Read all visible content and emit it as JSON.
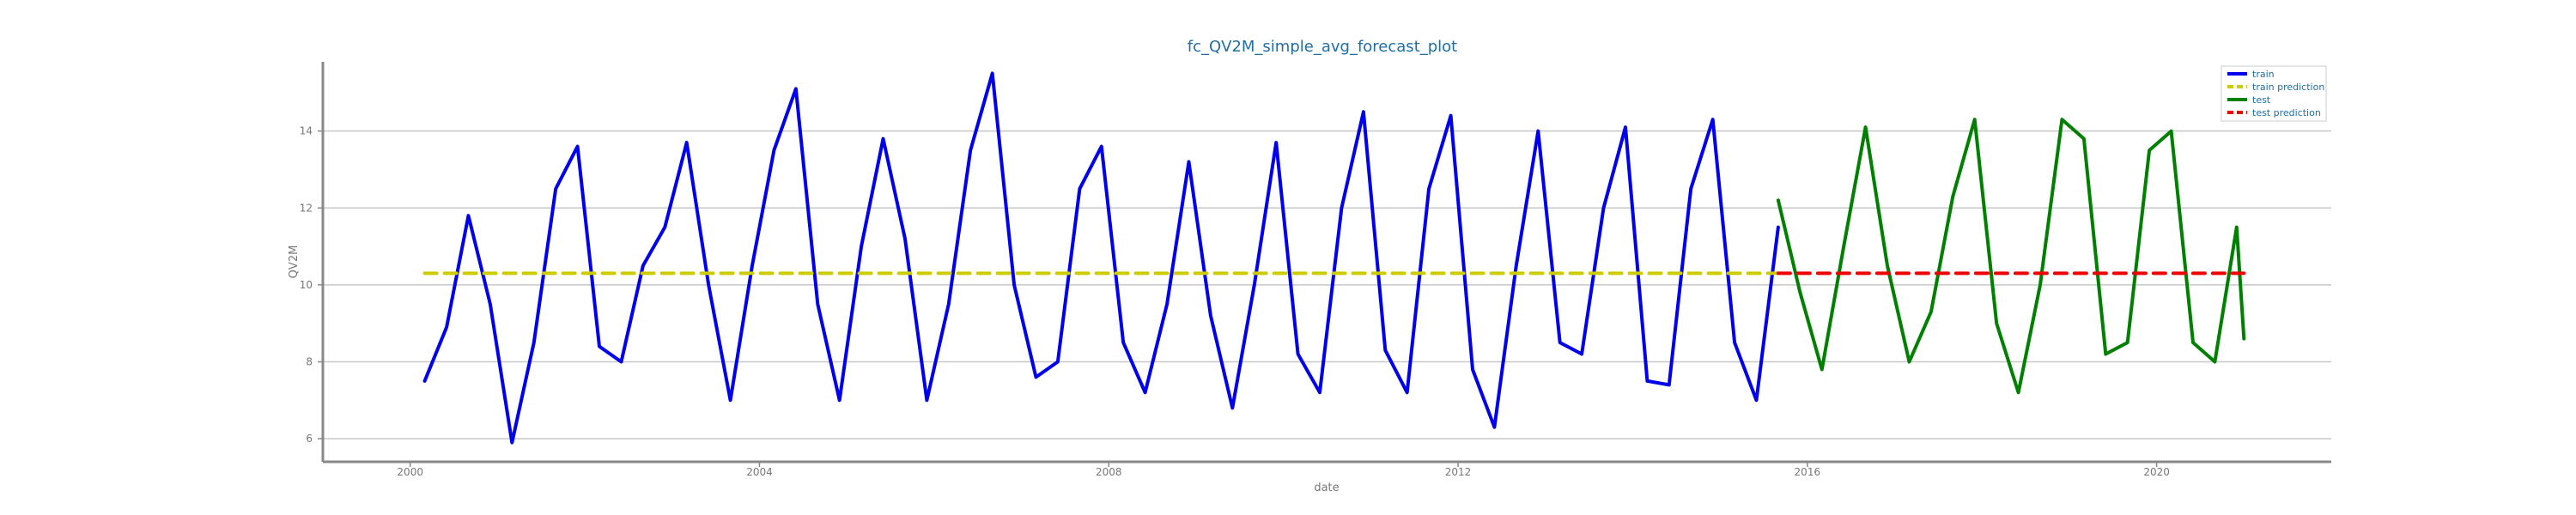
{
  "chart_data": {
    "type": "line",
    "title": "fc_QV2M_simple_avg_forecast_plot",
    "xlabel": "date",
    "ylabel": "QV2M",
    "x_tick_labels": [
      "2000",
      "2004",
      "2008",
      "2012",
      "2016",
      "2020"
    ],
    "y_tick_labels": [
      "6",
      "8",
      "10",
      "12",
      "14"
    ],
    "xlim": [
      "1999-01",
      "2022-01"
    ],
    "ylim": [
      5.4,
      15.8
    ],
    "grid": {
      "horizontal": true,
      "vertical": false
    },
    "legend_position": "top-right",
    "series": [
      {
        "name": "train",
        "color": "#0000ee",
        "style": "solid",
        "x": [
          "2000-03",
          "2000-06",
          "2000-09",
          "2000-12",
          "2001-03",
          "2001-06",
          "2001-09",
          "2001-12",
          "2002-03",
          "2002-06",
          "2002-09",
          "2002-12",
          "2003-03",
          "2003-06",
          "2003-09",
          "2003-12",
          "2004-03",
          "2004-06",
          "2004-09",
          "2004-12",
          "2005-03",
          "2005-06",
          "2005-09",
          "2005-12",
          "2006-03",
          "2006-06",
          "2006-09",
          "2006-12",
          "2007-03",
          "2007-06",
          "2007-09",
          "2007-12",
          "2008-03",
          "2008-06",
          "2008-09",
          "2008-12",
          "2009-03",
          "2009-06",
          "2009-09",
          "2009-12",
          "2010-03",
          "2010-06",
          "2010-09",
          "2010-12",
          "2011-03",
          "2011-06",
          "2011-09",
          "2011-12",
          "2012-03",
          "2012-06",
          "2012-09",
          "2012-12",
          "2013-03",
          "2013-06",
          "2013-09",
          "2013-12",
          "2014-03",
          "2014-06",
          "2014-09",
          "2014-12",
          "2015-03",
          "2015-06",
          "2015-09"
        ],
        "y": [
          7.5,
          8.9,
          11.8,
          9.5,
          5.9,
          8.5,
          12.5,
          13.6,
          8.4,
          8.0,
          10.5,
          11.5,
          13.7,
          10.0,
          7.0,
          10.5,
          13.5,
          15.1,
          9.5,
          7.0,
          11.0,
          13.8,
          11.2,
          7.0,
          9.5,
          13.5,
          15.5,
          10.0,
          7.6,
          8.0,
          12.5,
          13.6,
          8.5,
          7.2,
          9.5,
          13.2,
          9.2,
          6.8,
          10.0,
          13.7,
          8.2,
          7.2,
          12.0,
          14.5,
          8.3,
          7.2,
          12.5,
          14.4,
          7.8,
          6.3,
          10.5,
          14.0,
          8.5,
          8.2,
          12.0,
          14.1,
          7.5,
          7.4,
          12.5,
          14.3,
          8.5,
          7.0,
          11.5
        ]
      },
      {
        "name": "train prediction",
        "color": "#cccc00",
        "style": "dashed",
        "x": [
          "2000-03",
          "2015-09"
        ],
        "y": [
          10.3,
          10.3
        ]
      },
      {
        "name": "test",
        "color": "#008000",
        "style": "solid",
        "x": [
          "2015-09",
          "2015-12",
          "2016-03",
          "2016-06",
          "2016-09",
          "2016-12",
          "2017-03",
          "2017-06",
          "2017-09",
          "2017-12",
          "2018-03",
          "2018-06",
          "2018-09",
          "2018-12",
          "2019-03",
          "2019-06",
          "2019-09",
          "2019-12",
          "2020-03",
          "2020-06",
          "2020-09",
          "2020-12",
          "2021-01"
        ],
        "y": [
          12.2,
          9.8,
          7.8,
          11.0,
          14.1,
          10.5,
          8.0,
          9.3,
          12.3,
          14.3,
          9.0,
          7.2,
          10.0,
          14.3,
          13.8,
          8.2,
          8.5,
          13.5,
          14.0,
          8.5,
          8.0,
          11.5,
          8.6
        ]
      },
      {
        "name": "test prediction",
        "color": "#ee0000",
        "style": "dashed",
        "x": [
          "2015-09",
          "2021-01"
        ],
        "y": [
          10.3,
          10.3
        ]
      }
    ]
  }
}
